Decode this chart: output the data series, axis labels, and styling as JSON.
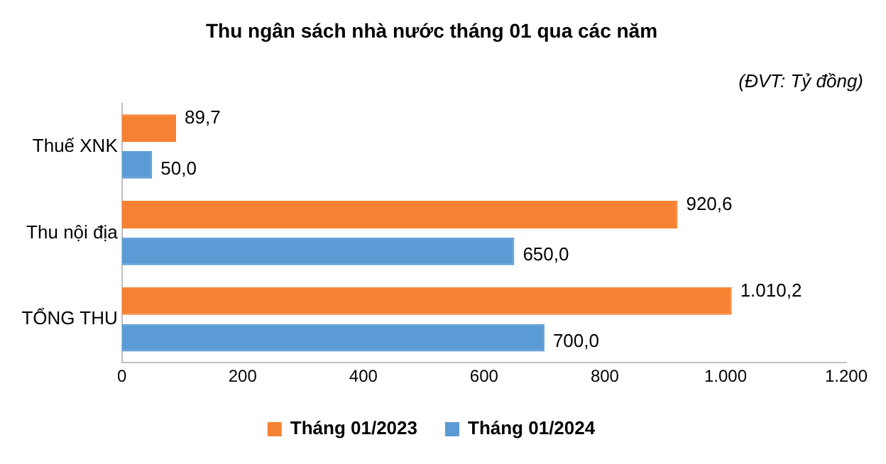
{
  "chart_data": {
    "type": "bar",
    "orientation": "horizontal",
    "title": "Thu ngân sách nhà nước tháng 01 qua các năm",
    "annotations": [
      "(ĐVT: Tỷ đồng)"
    ],
    "categories": [
      "Thuế XNK",
      "Thu nội địa",
      "TỔNG THU"
    ],
    "series": [
      {
        "name": "Tháng 01/2023",
        "color": "#f58232",
        "values": [
          89.7,
          920.6,
          1010.2
        ],
        "value_labels": [
          "89,7",
          "920,6",
          "1.010,2"
        ]
      },
      {
        "name": "Tháng 01/2024",
        "color": "#5b9bd5",
        "values": [
          50.0,
          650.0,
          700.0
        ],
        "value_labels": [
          "50,0",
          "650,0",
          "700,0"
        ]
      }
    ],
    "xlim": [
      0,
      1200
    ],
    "xticks": [
      0,
      200,
      400,
      600,
      800,
      {
        "value": 1000,
        "label": "1.000"
      },
      {
        "value": 1200,
        "label": "1.200"
      }
    ],
    "grid": false,
    "legend": "bottom"
  }
}
